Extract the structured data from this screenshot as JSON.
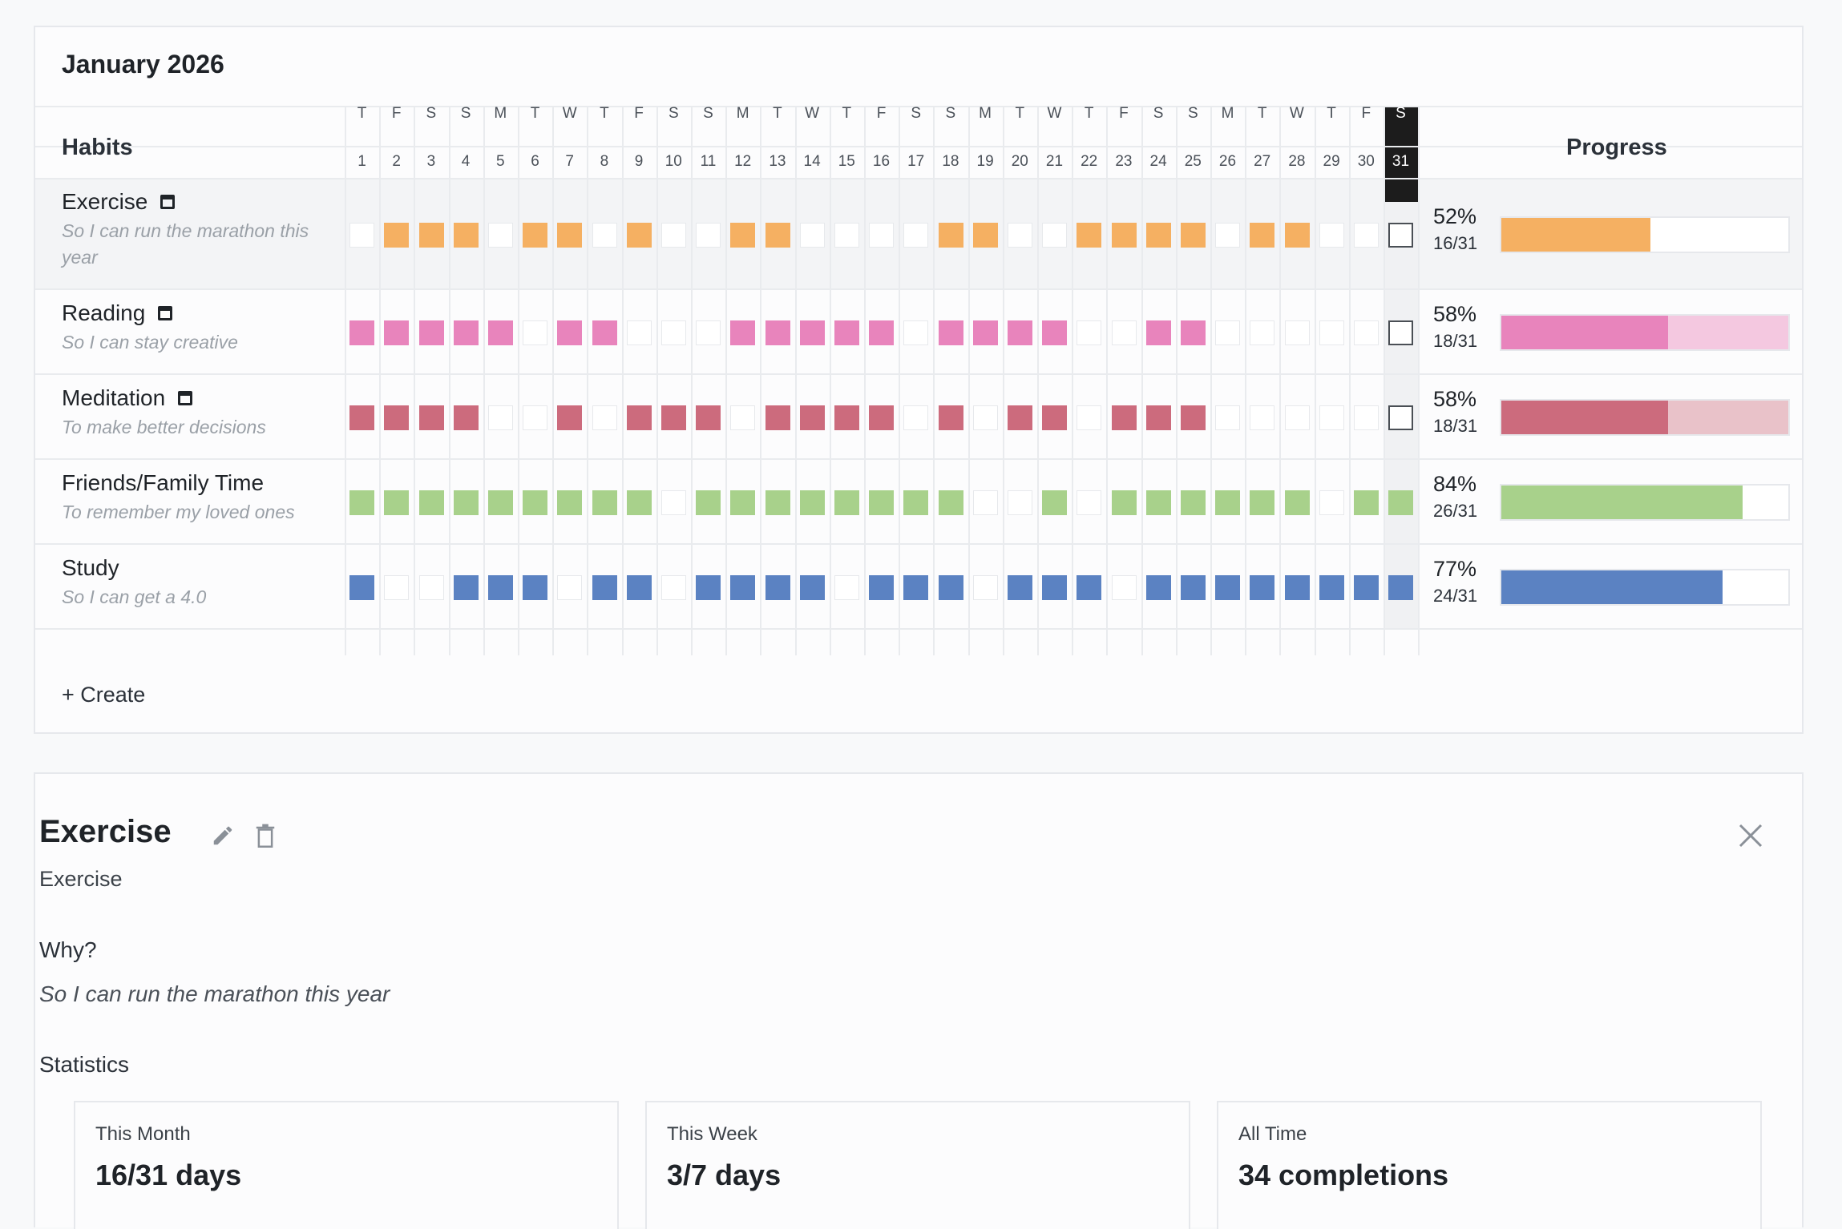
{
  "tracker": {
    "month_title": "January 2026",
    "habits_header": "Habits",
    "progress_header": "Progress",
    "create_label": "+ Create",
    "today_day": 31,
    "days": [
      {
        "dow": "T",
        "num": "1"
      },
      {
        "dow": "F",
        "num": "2"
      },
      {
        "dow": "S",
        "num": "3"
      },
      {
        "dow": "S",
        "num": "4"
      },
      {
        "dow": "M",
        "num": "5"
      },
      {
        "dow": "T",
        "num": "6"
      },
      {
        "dow": "W",
        "num": "7"
      },
      {
        "dow": "T",
        "num": "8"
      },
      {
        "dow": "F",
        "num": "9"
      },
      {
        "dow": "S",
        "num": "10"
      },
      {
        "dow": "S",
        "num": "11"
      },
      {
        "dow": "M",
        "num": "12"
      },
      {
        "dow": "T",
        "num": "13"
      },
      {
        "dow": "W",
        "num": "14"
      },
      {
        "dow": "T",
        "num": "15"
      },
      {
        "dow": "F",
        "num": "16"
      },
      {
        "dow": "S",
        "num": "17"
      },
      {
        "dow": "S",
        "num": "18"
      },
      {
        "dow": "M",
        "num": "19"
      },
      {
        "dow": "T",
        "num": "20"
      },
      {
        "dow": "W",
        "num": "21"
      },
      {
        "dow": "T",
        "num": "22"
      },
      {
        "dow": "F",
        "num": "23"
      },
      {
        "dow": "S",
        "num": "24"
      },
      {
        "dow": "S",
        "num": "25"
      },
      {
        "dow": "M",
        "num": "26"
      },
      {
        "dow": "T",
        "num": "27"
      },
      {
        "dow": "W",
        "num": "28"
      },
      {
        "dow": "T",
        "num": "29"
      },
      {
        "dow": "F",
        "num": "30"
      },
      {
        "dow": "S",
        "num": "31"
      }
    ],
    "habits": [
      {
        "name": "Exercise",
        "why": "So I can run the marathon this year",
        "color": "#f5b062",
        "light": "#ffffff",
        "has_calendar_icon": true,
        "selected": true,
        "percent": "52%",
        "fraction": "16/31",
        "progress": 0.52,
        "done": [
          0,
          1,
          1,
          1,
          0,
          1,
          1,
          0,
          1,
          0,
          0,
          1,
          1,
          0,
          0,
          0,
          0,
          1,
          1,
          0,
          0,
          1,
          1,
          1,
          1,
          0,
          1,
          1,
          0,
          0,
          0
        ]
      },
      {
        "name": "Reading",
        "why": "So I can stay creative",
        "color": "#e884bc",
        "light": "#f4c8e0",
        "has_calendar_icon": true,
        "selected": false,
        "percent": "58%",
        "fraction": "18/31",
        "progress": 0.58,
        "done": [
          1,
          1,
          1,
          1,
          1,
          0,
          1,
          1,
          0,
          0,
          0,
          1,
          1,
          1,
          1,
          1,
          0,
          1,
          1,
          1,
          1,
          0,
          0,
          1,
          1,
          0,
          0,
          0,
          0,
          0,
          0
        ]
      },
      {
        "name": "Meditation",
        "why": "To make better decisions",
        "color": "#cc6b7d",
        "light": "#e9c2c9",
        "has_calendar_icon": true,
        "selected": false,
        "percent": "58%",
        "fraction": "18/31",
        "progress": 0.58,
        "done": [
          1,
          1,
          1,
          1,
          0,
          0,
          1,
          0,
          1,
          1,
          1,
          0,
          1,
          1,
          1,
          1,
          0,
          1,
          0,
          1,
          1,
          0,
          1,
          1,
          1,
          0,
          0,
          0,
          0,
          0,
          0
        ]
      },
      {
        "name": "Friends/Family Time",
        "why": "To remember my loved ones",
        "color": "#a8d18b",
        "light": "#ffffff",
        "has_calendar_icon": false,
        "selected": false,
        "percent": "84%",
        "fraction": "26/31",
        "progress": 0.84,
        "done": [
          1,
          1,
          1,
          1,
          1,
          1,
          1,
          1,
          1,
          0,
          1,
          1,
          1,
          1,
          1,
          1,
          1,
          1,
          0,
          0,
          1,
          0,
          1,
          1,
          1,
          1,
          1,
          1,
          0,
          1,
          1
        ]
      },
      {
        "name": "Study",
        "why": "So I can get a 4.0",
        "color": "#5b82c2",
        "light": "#ffffff",
        "has_calendar_icon": false,
        "selected": false,
        "percent": "77%",
        "fraction": "24/31",
        "progress": 0.77,
        "done": [
          1,
          0,
          0,
          1,
          1,
          1,
          0,
          1,
          1,
          0,
          1,
          1,
          1,
          1,
          0,
          1,
          1,
          1,
          0,
          1,
          1,
          1,
          0,
          1,
          1,
          1,
          1,
          1,
          1,
          1,
          1
        ]
      }
    ]
  },
  "detail": {
    "title": "Exercise",
    "subtitle": "Exercise",
    "why_label": "Why?",
    "why_text": "So I can run the marathon this year",
    "statistics_label": "Statistics",
    "edit_icon": "pencil-icon",
    "delete_icon": "trash-icon",
    "close_icon": "close-icon",
    "stats": [
      {
        "label": "This Month",
        "value": "16/31 days"
      },
      {
        "label": "This Week",
        "value": "3/7 days"
      },
      {
        "label": "All Time",
        "value": "34 completions"
      }
    ]
  }
}
